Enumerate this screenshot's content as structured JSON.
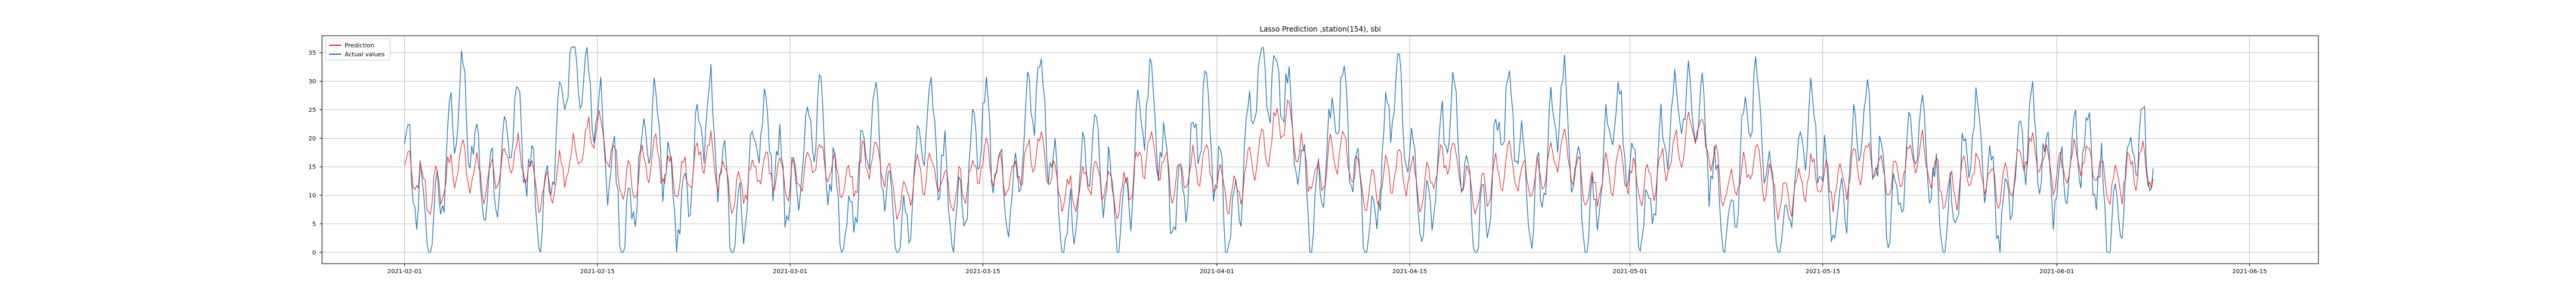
{
  "chart_data": {
    "type": "line",
    "title": "Lasso Prediction ,station(154), sbi",
    "xlabel": "",
    "ylabel": "",
    "x_range": [
      "2021-01-26",
      "2021-06-20"
    ],
    "data_range": [
      "2021-02-01",
      "2021-06-08"
    ],
    "ylim": [
      -2,
      38
    ],
    "x_ticks": [
      "2021-02-01",
      "2021-02-15",
      "2021-03-01",
      "2021-03-15",
      "2021-04-01",
      "2021-04-15",
      "2021-05-01",
      "2021-05-15",
      "2021-06-01",
      "2021-06-15"
    ],
    "y_ticks": [
      0,
      5,
      10,
      15,
      20,
      25,
      30,
      35
    ],
    "grid": true,
    "legend_position": "top-left",
    "series": [
      {
        "name": "Prediction",
        "color": "#e8262b",
        "x": [
          "2021-02-01",
          "2021-02-03",
          "2021-02-05",
          "2021-02-07",
          "2021-02-09",
          "2021-02-11",
          "2021-02-13",
          "2021-02-15",
          "2021-02-17",
          "2021-02-19",
          "2021-02-21",
          "2021-02-23",
          "2021-02-25",
          "2021-02-27",
          "2021-03-01",
          "2021-03-03",
          "2021-03-05",
          "2021-03-07",
          "2021-03-09",
          "2021-03-11",
          "2021-03-13",
          "2021-03-15",
          "2021-03-17",
          "2021-03-19",
          "2021-03-21",
          "2021-03-23",
          "2021-03-25",
          "2021-03-27",
          "2021-03-29",
          "2021-03-31",
          "2021-04-02",
          "2021-04-04",
          "2021-04-06",
          "2021-04-08",
          "2021-04-10",
          "2021-04-12",
          "2021-04-14",
          "2021-04-16",
          "2021-04-18",
          "2021-04-20",
          "2021-04-22",
          "2021-04-24",
          "2021-04-26",
          "2021-04-28",
          "2021-04-30",
          "2021-05-02",
          "2021-05-04",
          "2021-05-06",
          "2021-05-08",
          "2021-05-10",
          "2021-05-12",
          "2021-05-14",
          "2021-05-16",
          "2021-05-18",
          "2021-05-20",
          "2021-05-22",
          "2021-05-24",
          "2021-05-26",
          "2021-05-28",
          "2021-05-30",
          "2021-06-01",
          "2021-06-03",
          "2021-06-05",
          "2021-06-07",
          "2021-06-08"
        ],
        "values": [
          15,
          10,
          16,
          12,
          18,
          10,
          16,
          22,
          11,
          17,
          12,
          18,
          10,
          16,
          12,
          17,
          11,
          18,
          9,
          15,
          10,
          16,
          12,
          19,
          9,
          14,
          10,
          18,
          12,
          16,
          10,
          17,
          24,
          12,
          19,
          10,
          15,
          11,
          18,
          9,
          16,
          12,
          19,
          10,
          15,
          11,
          17,
          23,
          10,
          16,
          9,
          14,
          11,
          17,
          12,
          18,
          10,
          15,
          11,
          19,
          13,
          17,
          11,
          16,
          14
        ]
      },
      {
        "name": "Actual values",
        "color": "#1f77b4",
        "x": [
          "2021-02-01",
          "2021-02-03",
          "2021-02-05",
          "2021-02-07",
          "2021-02-09",
          "2021-02-11",
          "2021-02-13",
          "2021-02-15",
          "2021-02-17",
          "2021-02-19",
          "2021-02-21",
          "2021-02-23",
          "2021-02-25",
          "2021-02-27",
          "2021-03-01",
          "2021-03-03",
          "2021-03-05",
          "2021-03-07",
          "2021-03-09",
          "2021-03-11",
          "2021-03-13",
          "2021-03-15",
          "2021-03-17",
          "2021-03-19",
          "2021-03-21",
          "2021-03-23",
          "2021-03-25",
          "2021-03-27",
          "2021-03-29",
          "2021-03-31",
          "2021-04-02",
          "2021-04-04",
          "2021-04-06",
          "2021-04-08",
          "2021-04-10",
          "2021-04-12",
          "2021-04-14",
          "2021-04-16",
          "2021-04-18",
          "2021-04-20",
          "2021-04-22",
          "2021-04-24",
          "2021-04-26",
          "2021-04-28",
          "2021-04-30",
          "2021-05-02",
          "2021-05-04",
          "2021-05-06",
          "2021-05-08",
          "2021-05-10",
          "2021-05-12",
          "2021-05-14",
          "2021-05-16",
          "2021-05-18",
          "2021-05-20",
          "2021-05-22",
          "2021-05-24",
          "2021-05-26",
          "2021-05-28",
          "2021-05-30",
          "2021-06-01",
          "2021-06-03",
          "2021-06-05",
          "2021-06-07",
          "2021-06-08"
        ],
        "values": [
          18,
          2,
          30,
          8,
          25,
          4,
          36,
          26,
          3,
          25,
          5,
          27,
          2,
          24,
          8,
          26,
          1,
          26,
          0,
          27,
          4,
          25,
          6,
          32,
          0,
          22,
          3,
          30,
          6,
          26,
          2,
          31,
          29,
          5,
          28,
          1,
          32,
          4,
          27,
          1,
          28,
          6,
          29,
          2,
          27,
          3,
          25,
          26,
          1,
          29,
          0,
          25,
          4,
          26,
          6,
          22,
          2,
          24,
          5,
          23,
          10,
          21,
          4,
          22,
          14
        ]
      }
    ]
  }
}
